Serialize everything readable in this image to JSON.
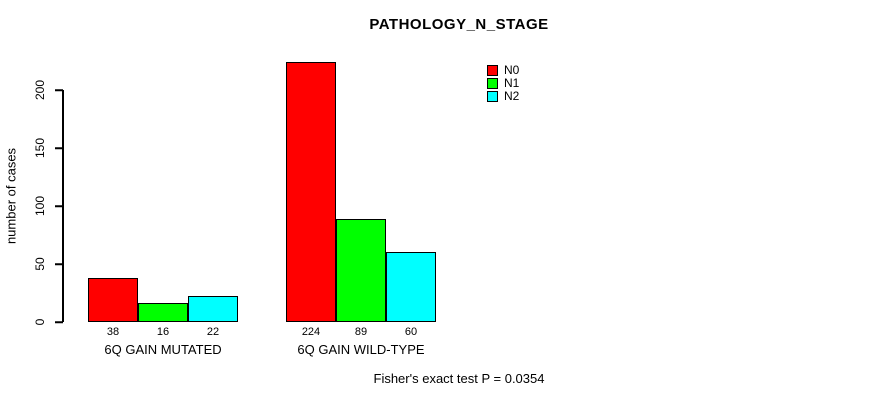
{
  "chart_data": {
    "type": "bar",
    "title": "PATHOLOGY_N_STAGE",
    "ylabel": "number of cases",
    "xlabel": "",
    "categories": [
      "6Q GAIN MUTATED",
      "6Q GAIN WILD-TYPE"
    ],
    "series": [
      {
        "name": "N0",
        "color": "#ff0000",
        "values": [
          38,
          224
        ]
      },
      {
        "name": "N1",
        "color": "#00ff00",
        "values": [
          16,
          89
        ]
      },
      {
        "name": "N2",
        "color": "#00ffff",
        "values": [
          22,
          60
        ]
      }
    ],
    "bar_value_labels": [
      [
        "38",
        "16",
        "22"
      ],
      [
        "224",
        "89",
        "60"
      ]
    ],
    "yticks": [
      "0",
      "50",
      "100",
      "150",
      "200"
    ],
    "ylim": [
      0,
      225
    ],
    "grid": false,
    "legend_position": "top-right-inside",
    "bar_border_color": "#000000",
    "axis_color": "#000000",
    "background_color": "#ffffff"
  },
  "annotations": {
    "footer": "Fisher's exact test P = 0.0354"
  }
}
